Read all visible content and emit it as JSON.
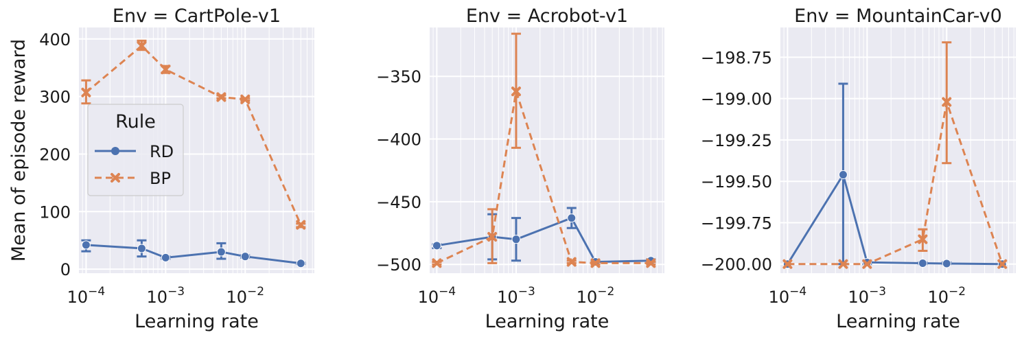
{
  "figure": {
    "ylabel": "Mean of episode reward",
    "legend": {
      "title": "Rule",
      "placement": "left-middle of first panel",
      "entries": [
        {
          "label": "RD",
          "color": "#4c72b0",
          "marker": "circle",
          "linestyle": "solid"
        },
        {
          "label": "BP",
          "color": "#dd8452",
          "marker": "x",
          "linestyle": "dashed"
        }
      ]
    },
    "colors": {
      "background": "#eaeaf2",
      "grid": "#ffffff",
      "RD": "#4c72b0",
      "BP": "#dd8452"
    }
  },
  "chart_data": [
    {
      "type": "line",
      "title": "Env = CartPole-v1",
      "xlabel": "Learning rate",
      "ylabel": "Mean of episode reward",
      "xscale": "log",
      "xlim": [
        8.13e-05,
        0.074
      ],
      "ylim": [
        -7,
        420
      ],
      "xticks": [
        0.0001,
        0.001,
        0.01
      ],
      "xtick_labels": [
        "10^-4",
        "10^-3",
        "10^-2"
      ],
      "yticks": [
        0,
        100,
        200,
        300,
        400
      ],
      "ytick_labels": [
        "0",
        "100",
        "200",
        "300",
        "400"
      ],
      "grid": true,
      "series": [
        {
          "name": "RD",
          "x": [
            0.0001,
            0.0005,
            0.001,
            0.005,
            0.01,
            0.05
          ],
          "y": [
            42,
            36,
            20,
            30,
            22,
            10
          ],
          "err_low": [
            31,
            22,
            18,
            18,
            20,
            9
          ],
          "err_high": [
            50,
            50,
            22,
            45,
            24,
            11
          ]
        },
        {
          "name": "BP",
          "x": [
            0.0001,
            0.0005,
            0.001,
            0.005,
            0.01,
            0.05
          ],
          "y": [
            307,
            388,
            347,
            299,
            295,
            77
          ],
          "err_low": [
            288,
            381,
            341,
            297,
            293,
            73
          ],
          "err_high": [
            328,
            397,
            353,
            302,
            297,
            79
          ]
        }
      ]
    },
    {
      "type": "line",
      "title": "Env = Acrobot-v1",
      "xlabel": "Learning rate",
      "xscale": "log",
      "xlim": [
        8.13e-05,
        0.074
      ],
      "ylim": [
        -507,
        -311
      ],
      "xticks": [
        0.0001,
        0.001,
        0.01
      ],
      "xtick_labels": [
        "10^-4",
        "10^-3",
        "10^-2"
      ],
      "yticks": [
        -350,
        -400,
        -450,
        -500
      ],
      "ytick_labels": [
        "−350",
        "−400",
        "−450",
        "−500"
      ],
      "grid": true,
      "series": [
        {
          "name": "RD",
          "x": [
            0.0001,
            0.0005,
            0.001,
            0.005,
            0.01,
            0.05
          ],
          "y": [
            -485,
            -478,
            -480,
            -463,
            -498,
            -497
          ],
          "err_low": [
            -487,
            -496,
            -497,
            -471,
            -499,
            -498
          ],
          "err_high": [
            -484,
            -460,
            -463,
            -455,
            -497,
            -496
          ]
        },
        {
          "name": "BP",
          "x": [
            0.0001,
            0.0005,
            0.001,
            0.005,
            0.01,
            0.05
          ],
          "y": [
            -499,
            -478,
            -362,
            -498,
            -499,
            -499
          ],
          "err_low": [
            -500,
            -499,
            -407,
            -499,
            -500,
            -500
          ],
          "err_high": [
            -498,
            -456,
            -316,
            -497,
            -498,
            -498
          ]
        }
      ]
    },
    {
      "type": "line",
      "title": "Env = MountainCar-v0",
      "xlabel": "Learning rate",
      "xscale": "log",
      "xlim": [
        8.13e-05,
        0.074
      ],
      "ylim": [
        -200.055,
        -198.57
      ],
      "xticks": [
        0.0001,
        0.001,
        0.01
      ],
      "xtick_labels": [
        "10^-4",
        "10^-3",
        "10^-2"
      ],
      "yticks": [
        -198.75,
        -199.0,
        -199.25,
        -199.5,
        -199.75,
        -200.0
      ],
      "ytick_labels": [
        "−198.75",
        "−199.00",
        "−199.25",
        "−199.50",
        "−199.75",
        "−200.00"
      ],
      "grid": true,
      "series": [
        {
          "name": "RD",
          "x": [
            0.0001,
            0.0005,
            0.001,
            0.005,
            0.01,
            0.05
          ],
          "y": [
            -200.0,
            -199.46,
            -199.99,
            -199.995,
            -199.997,
            -200.0
          ],
          "err_low": [
            -200.0,
            -200.0,
            -200.0,
            -200.0,
            -200.0,
            -200.0
          ],
          "err_high": [
            -200.0,
            -198.91,
            -199.98,
            -199.99,
            -199.99,
            -200.0
          ]
        },
        {
          "name": "BP",
          "x": [
            0.0001,
            0.0005,
            0.001,
            0.005,
            0.01,
            0.05
          ],
          "y": [
            -200.0,
            -200.0,
            -200.0,
            -199.85,
            -199.02,
            -200.0
          ],
          "err_low": [
            -200.0,
            -200.0,
            -200.0,
            -199.92,
            -199.39,
            -200.0
          ],
          "err_high": [
            -200.0,
            -200.0,
            -200.0,
            -199.79,
            -198.66,
            -200.0
          ]
        }
      ]
    }
  ]
}
